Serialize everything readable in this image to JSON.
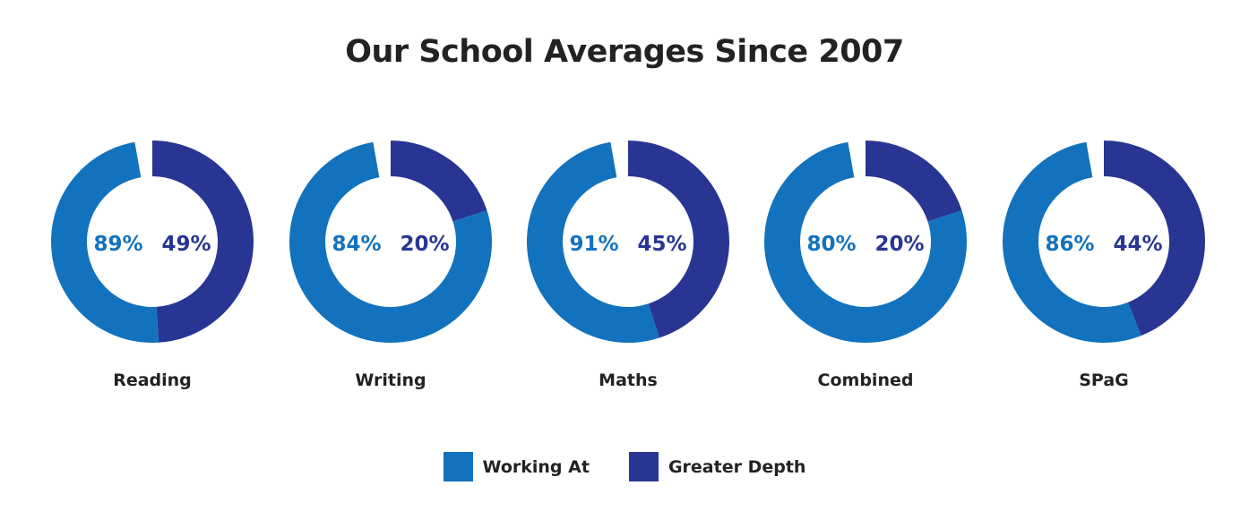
{
  "title": "Our School Averages Since 2007",
  "colors": {
    "working_at": "#1272bd",
    "greater_depth": "#283593"
  },
  "legend": [
    {
      "label": "Working At",
      "color_key": "working_at"
    },
    {
      "label": "Greater Depth",
      "color_key": "greater_depth"
    }
  ],
  "chart_data": {
    "type": "donut",
    "title": "Our School Averages Since 2007",
    "categories": [
      "Reading",
      "Writing",
      "Maths",
      "Combined",
      "SPaG"
    ],
    "series": [
      {
        "name": "Working At",
        "values": [
          89,
          84,
          91,
          80,
          86
        ],
        "value_labels": [
          "89%",
          "84%",
          "91%",
          "80%",
          "86%"
        ]
      },
      {
        "name": "Greater Depth",
        "values": [
          49,
          20,
          45,
          20,
          44
        ],
        "value_labels": [
          "49%",
          "20%",
          "45%",
          "20%",
          "44%"
        ]
      }
    ],
    "legend_position": "bottom-center",
    "grid": false
  }
}
